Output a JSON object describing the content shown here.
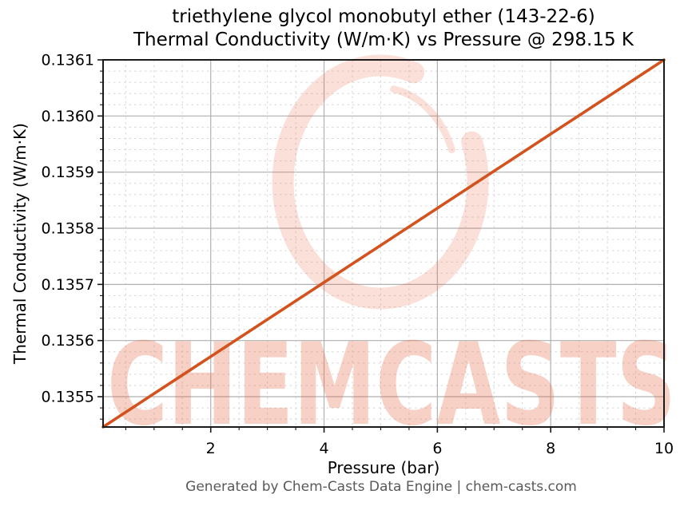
{
  "figure": {
    "title_line1": "triethylene glycol monobutyl ether (143-22-6)",
    "title_line2": "Thermal Conductivity (W/m·K) vs Pressure @ 298.15 K",
    "footer": "Generated by Chem-Casts Data Engine | chem-casts.com",
    "watermark_text": "CHEMCASTS"
  },
  "style": {
    "line_color": "#d2531e",
    "grid_major_color": "#b0b0b0",
    "grid_minor_color": "#d6d6d6",
    "spine_color": "#1a1a1a",
    "tick_color": "#1a1a1a",
    "tick_label_color": "#000000",
    "footer_color": "#595959",
    "watermark_color": "rgba(229,99,66,0.30)",
    "watermark_ring_color": "rgba(229,99,66,0.20)"
  },
  "chart_data": {
    "type": "line",
    "title": "triethylene glycol monobutyl ether (143-22-6)\nThermal Conductivity (W/m·K) vs Pressure @ 298.15 K",
    "xlabel": "Pressure (bar)",
    "ylabel": "Thermal Conductivity (W/m·K)",
    "xlim": [
      0.1,
      10
    ],
    "ylim": [
      0.135446,
      0.1361
    ],
    "grid": {
      "major": true,
      "minor": true
    },
    "legend": "none",
    "x_ticks": [
      {
        "v": 2,
        "label": "2"
      },
      {
        "v": 4,
        "label": "4"
      },
      {
        "v": 6,
        "label": "6"
      },
      {
        "v": 8,
        "label": "8"
      },
      {
        "v": 10,
        "label": "10"
      }
    ],
    "y_ticks": [
      {
        "v": 0.1355,
        "label": "0.1355"
      },
      {
        "v": 0.1356,
        "label": "0.1356"
      },
      {
        "v": 0.1357,
        "label": "0.1357"
      },
      {
        "v": 0.1358,
        "label": "0.1358"
      },
      {
        "v": 0.1359,
        "label": "0.1359"
      },
      {
        "v": 0.136,
        "label": "0.1360"
      },
      {
        "v": 0.1361,
        "label": "0.1361"
      }
    ],
    "x_minor_step": 0.5,
    "y_minor_step": 2e-05,
    "series": [
      {
        "name": "Thermal Conductivity (W/m·K) @ 298.15 K",
        "color": "#d2531e",
        "x": [
          0.1,
          0.5,
          1.0,
          1.5,
          2.0,
          2.5,
          3.0,
          3.5,
          4.0,
          4.5,
          5.0,
          5.5,
          6.0,
          6.5,
          7.0,
          7.5,
          8.0,
          8.5,
          9.0,
          9.5,
          10.0
        ],
        "y": [
          0.135446,
          0.1354724,
          0.1355055,
          0.1355385,
          0.1355715,
          0.1356045,
          0.1356376,
          0.1356706,
          0.1357036,
          0.1357367,
          0.1357697,
          0.1358027,
          0.1358358,
          0.1358688,
          0.1359018,
          0.1359349,
          0.1359679,
          0.1360009,
          0.1360339,
          0.136067,
          0.1361
        ]
      }
    ]
  }
}
